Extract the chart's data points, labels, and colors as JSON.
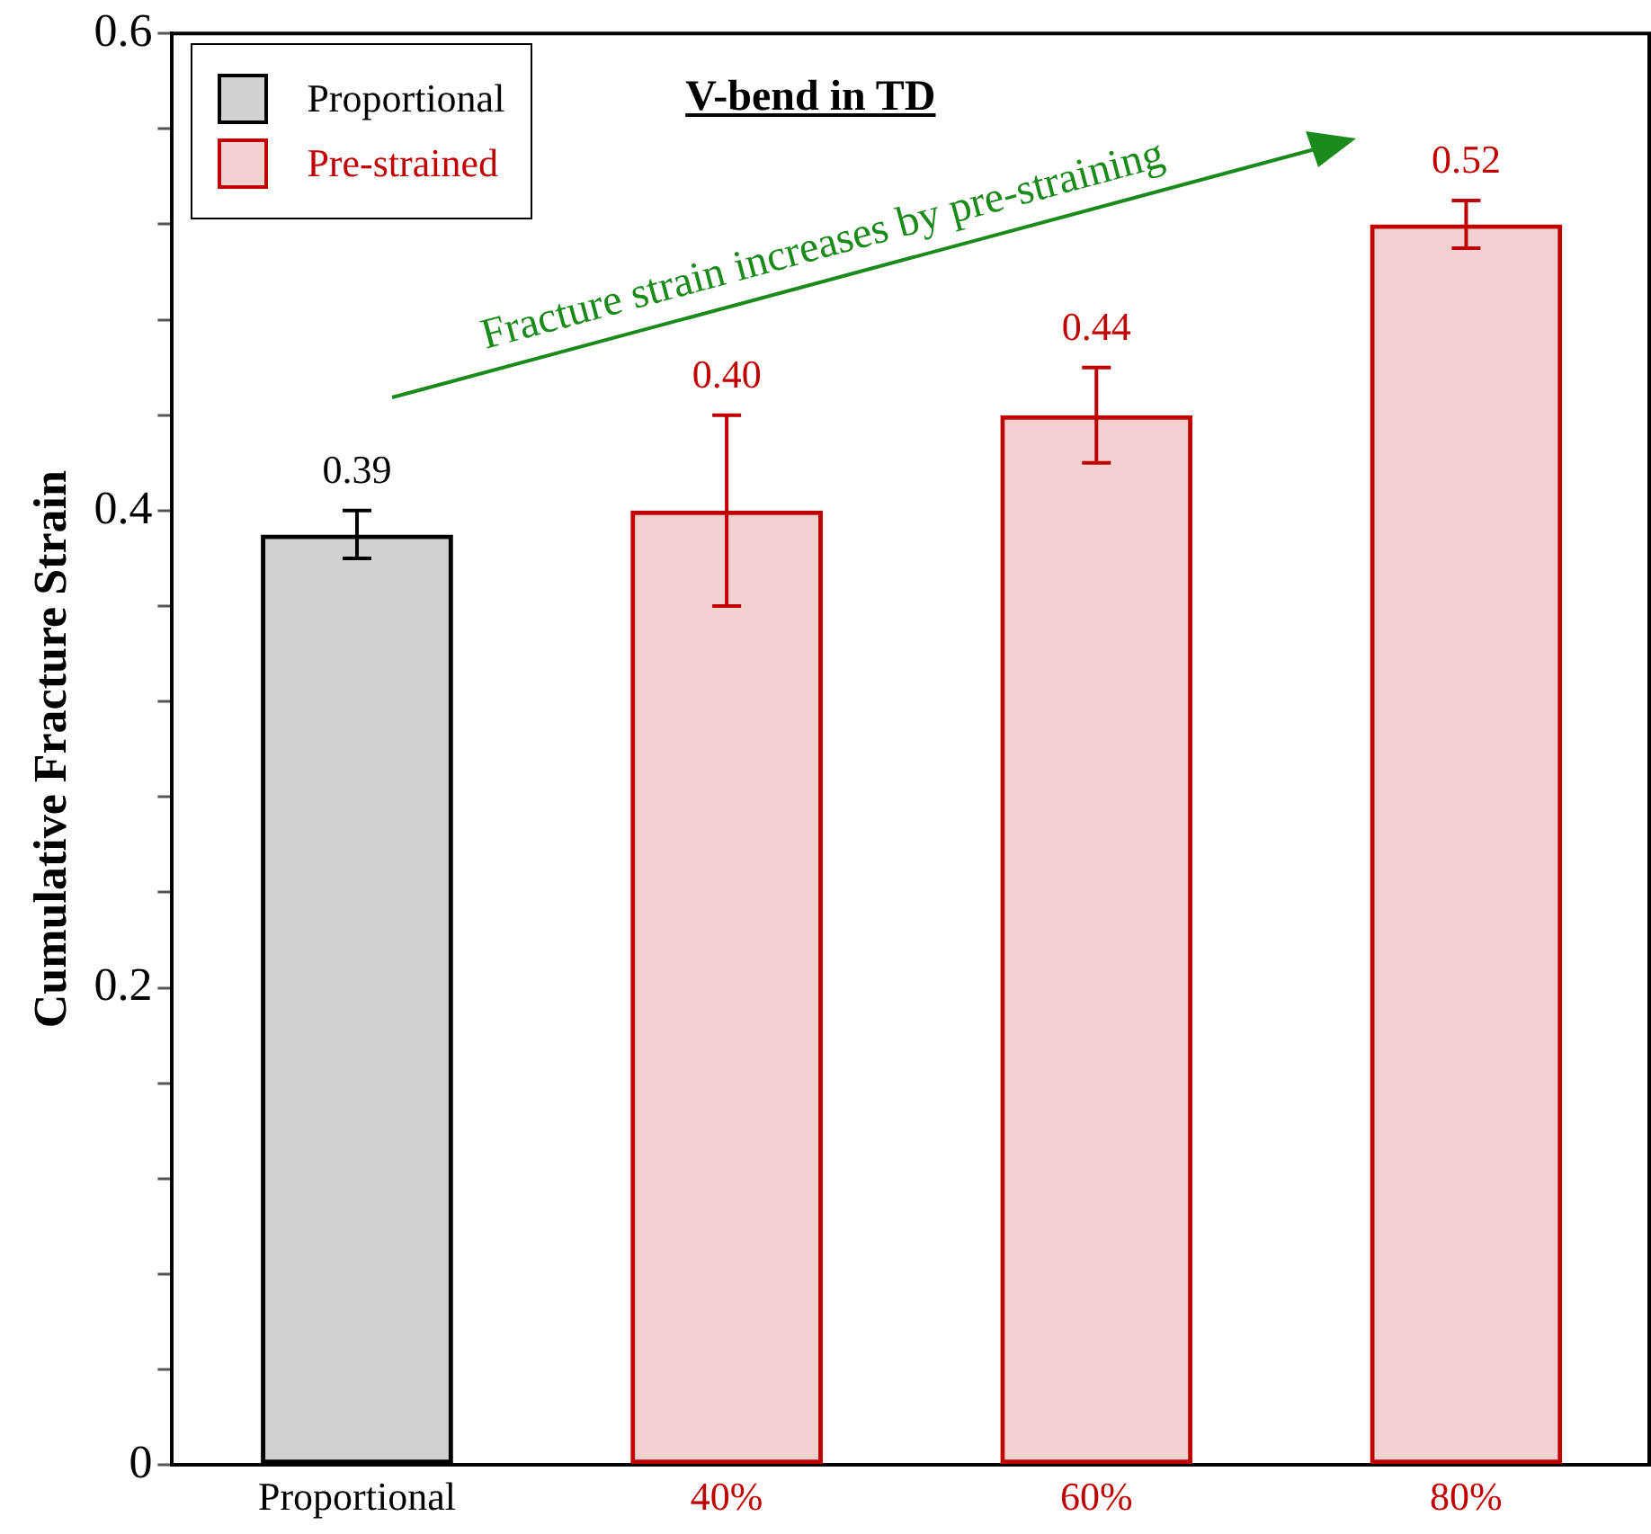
{
  "chart_data": {
    "type": "bar",
    "title": "V-bend in TD",
    "ylabel": "Cumulative Fracture Strain",
    "categories": [
      "Proportional",
      "40%",
      "60%",
      "80%"
    ],
    "series": [
      {
        "name": "Proportional",
        "color": "#000000",
        "values": [
          0.39,
          null,
          null,
          null
        ],
        "errors": [
          0.01,
          null,
          null,
          null
        ],
        "value_labels": [
          "0.39",
          null,
          null,
          null
        ]
      },
      {
        "name": "Pre-strained",
        "color": "#c00000",
        "values": [
          null,
          0.4,
          0.44,
          0.52
        ],
        "errors": [
          null,
          0.04,
          0.02,
          0.01
        ],
        "value_labels": [
          null,
          "0.40",
          "0.44",
          "0.52"
        ]
      }
    ],
    "ylim": [
      0,
      0.6
    ],
    "yticks": [
      0,
      {
        "value": 0.04,
        "label": null
      },
      {
        "value": 0.08,
        "label": null
      },
      {
        "value": 0.12,
        "label": null
      },
      {
        "value": 0.16,
        "label": null
      },
      0.2,
      {
        "value": 0.24,
        "label": null
      },
      {
        "value": 0.28,
        "label": null
      },
      {
        "value": 0.32,
        "label": null
      },
      {
        "value": 0.36,
        "label": null
      },
      0.4,
      {
        "value": 0.44,
        "label": null
      },
      {
        "value": 0.48,
        "label": null
      },
      {
        "value": 0.52,
        "label": null
      },
      {
        "value": 0.56,
        "label": null
      },
      0.6
    ],
    "annotations": [
      "Fracture strain increases by pre-straining"
    ],
    "grid": false,
    "legend": "top left"
  }
}
